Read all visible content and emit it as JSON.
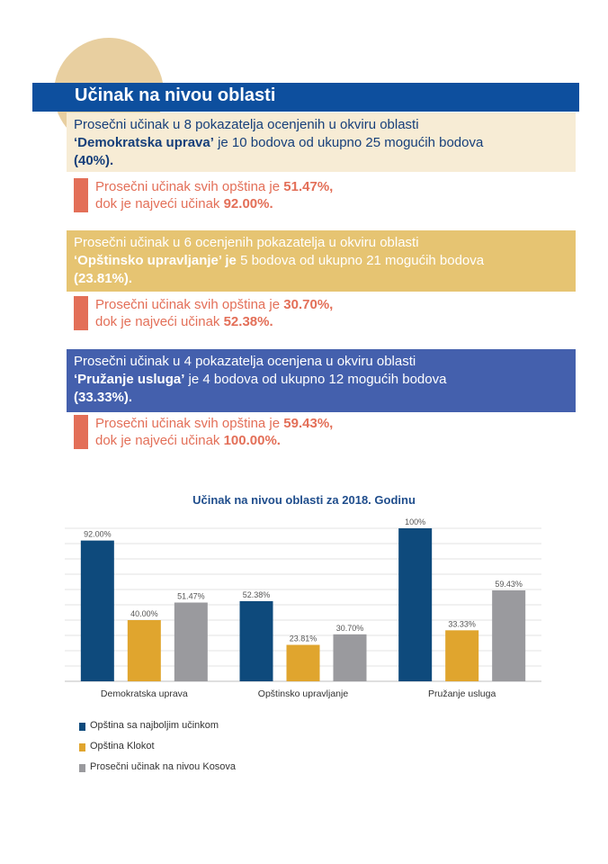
{
  "header": {
    "title": "Učinak na nivou oblasti"
  },
  "sections": [
    {
      "line1": "Prosečni učinak u 8 pokazatelja ocenjenih u okviru oblasti",
      "name": "‘Demokratska uprava’",
      "middle": " je 10 bodova od ukupno 25 mogućih bodova",
      "percent": "(40%).",
      "stat_prefix": "Prosečni učinak svih opština je ",
      "stat_avg": "51.47%,",
      "stat_max_prefix": "dok je najveći učinak ",
      "stat_max": "92.00%."
    },
    {
      "line1": "Prosečni učinak u 6 ocenjenih pokazatelja u okviru oblasti",
      "name": "‘Opštinsko upravljanje’ je",
      "middle": " 5 bodova od ukupno 21 mogućih bodova",
      "percent": "(23.81%).",
      "stat_prefix": "Prosečni učinak svih opština je ",
      "stat_avg": "30.70%,",
      "stat_max_prefix": "dok je najveći učinak ",
      "stat_max": "52.38%."
    },
    {
      "line1": "Prosečni učinak u 4 pokazatelja ocenjena u okviru oblasti",
      "name": "‘Pružanje usluga’",
      "middle": " je 4 bodova od ukupno 12 mogućih bodova",
      "percent": "(33.33%).",
      "stat_prefix": "Prosečni učinak svih opština je ",
      "stat_avg": "59.43%,",
      "stat_max_prefix": "dok je najveći učinak ",
      "stat_max": "100.00%."
    }
  ],
  "colors": {
    "series1": "#0e4a7c",
    "series2": "#e0a52e",
    "series3": "#9a9a9e"
  },
  "chart_data": {
    "type": "bar",
    "title": "Učinak na nivou oblasti za 2018. Godinu",
    "categories": [
      "Demokratska uprava",
      "Opštinsko upravljanje",
      "Pružanje usluga"
    ],
    "series": [
      {
        "name": "Opština sa najboljim učinkom",
        "values": [
          92.0,
          52.38,
          100
        ],
        "labels": [
          "92.00%",
          "52.38%",
          "100%"
        ]
      },
      {
        "name": "Opština Klokot",
        "values": [
          40.0,
          23.81,
          33.33
        ],
        "labels": [
          "40.00%",
          "23.81%",
          "33.33%"
        ]
      },
      {
        "name": "Prosečni učinak na nivou Kosova",
        "values": [
          51.47,
          30.7,
          59.43
        ],
        "labels": [
          "51.47%",
          "30.70%",
          "59.43%"
        ]
      }
    ],
    "ylim": [
      0,
      100
    ],
    "grid": true,
    "legend_position": "bottom-left"
  }
}
